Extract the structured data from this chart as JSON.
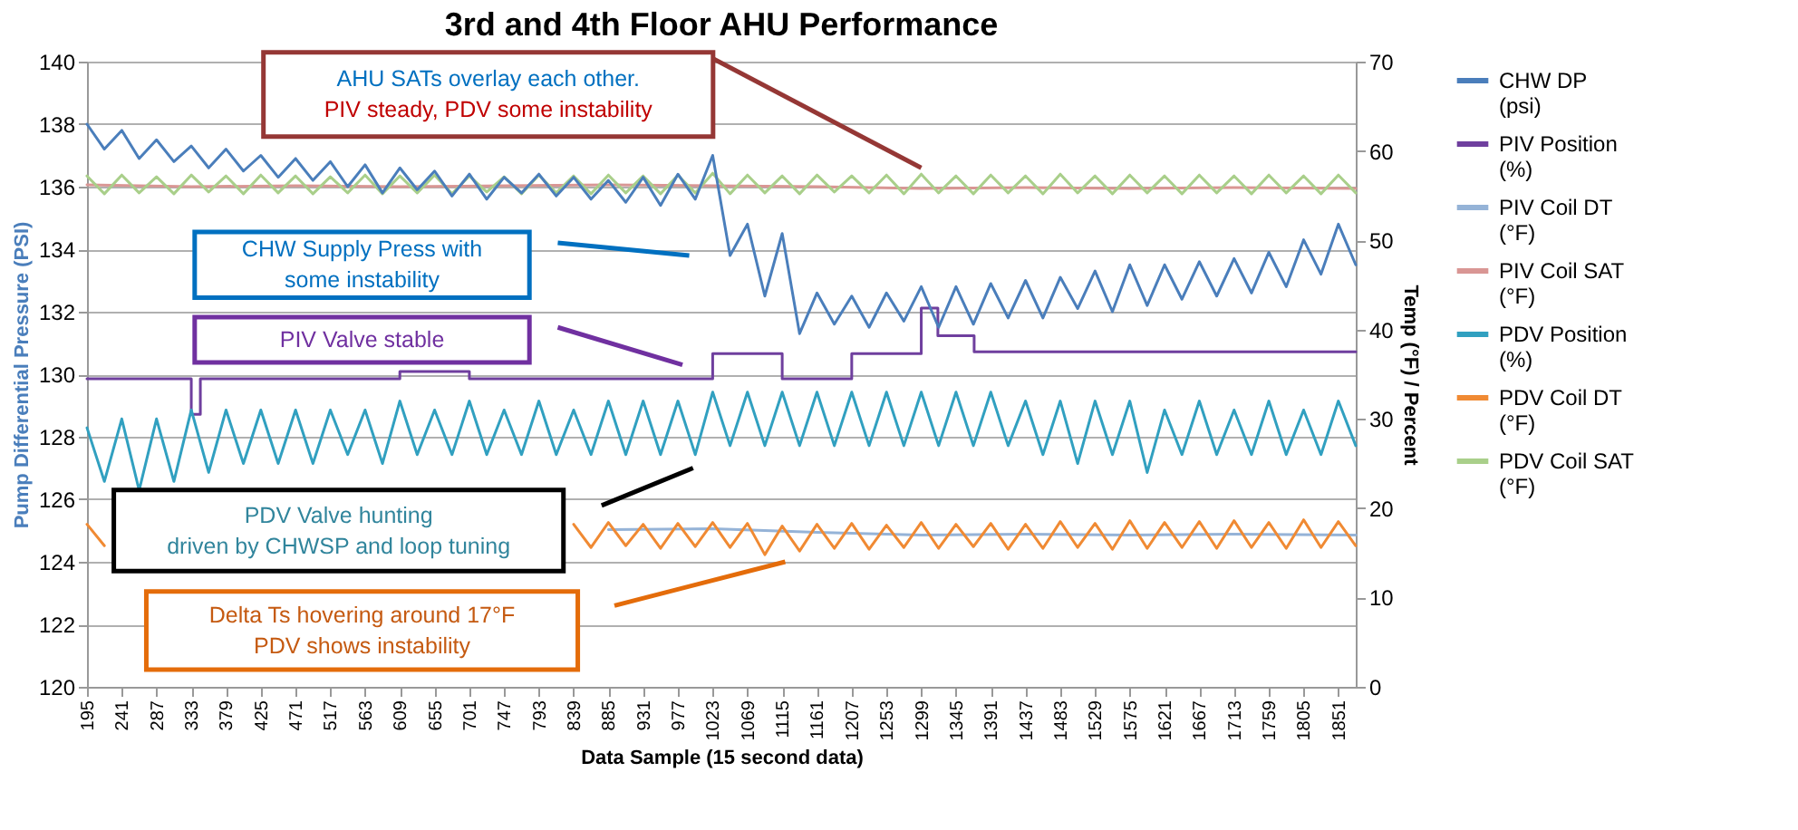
{
  "chart_data": {
    "type": "line",
    "title": "3rd and 4th Floor AHU Performance",
    "xlabel": "Data Sample   (15 second data)",
    "ylabel": "Pump Differential Pressure  (PSI)",
    "y2label": "Temp (°F)  /  Percent",
    "x": [
      195,
      218,
      241,
      264,
      287,
      310,
      333,
      356,
      379,
      402,
      425,
      448,
      471,
      494,
      517,
      540,
      563,
      586,
      609,
      632,
      655,
      678,
      701,
      724,
      747,
      770,
      793,
      816,
      839,
      862,
      885,
      908,
      931,
      954,
      977,
      1000,
      1023,
      1046,
      1069,
      1092,
      1115,
      1138,
      1161,
      1184,
      1207,
      1230,
      1253,
      1276,
      1299,
      1322,
      1345,
      1368,
      1391,
      1414,
      1437,
      1460,
      1483,
      1506,
      1529,
      1552,
      1575,
      1598,
      1621,
      1644,
      1667,
      1690,
      1713,
      1736,
      1759,
      1782,
      1805,
      1828,
      1851,
      1874
    ],
    "xlim": [
      195,
      1874
    ],
    "xticks": [
      195,
      241,
      287,
      333,
      379,
      425,
      471,
      517,
      563,
      609,
      655,
      701,
      747,
      793,
      839,
      885,
      931,
      977,
      1023,
      1069,
      1115,
      1161,
      1207,
      1253,
      1299,
      1345,
      1391,
      1437,
      1483,
      1529,
      1575,
      1621,
      1667,
      1713,
      1759,
      1805,
      1851
    ],
    "ylim": [
      120,
      140
    ],
    "yticks": [
      120,
      122,
      124,
      126,
      128,
      130,
      132,
      134,
      136,
      138,
      140
    ],
    "y2lim": [
      0,
      70
    ],
    "y2ticks": [
      0,
      10,
      20,
      30,
      40,
      50,
      60,
      70
    ],
    "grid": "y",
    "legend": "right",
    "series": [
      {
        "name": "CHW DP (psi)",
        "color": "#4a7ebb",
        "values": [
          138.0,
          137.2,
          137.8,
          136.9,
          137.5,
          136.8,
          137.3,
          136.6,
          137.2,
          136.5,
          137.0,
          136.3,
          136.9,
          136.2,
          136.8,
          136.0,
          136.7,
          135.8,
          136.6,
          135.9,
          136.5,
          135.7,
          136.4,
          135.6,
          136.3,
          135.8,
          136.4,
          135.7,
          136.3,
          135.6,
          136.2,
          135.5,
          136.3,
          135.4,
          136.4,
          135.6,
          137.0,
          133.8,
          134.8,
          132.5,
          134.5,
          131.3,
          132.6,
          131.6,
          132.5,
          131.5,
          132.6,
          131.7,
          132.8,
          131.5,
          132.8,
          131.6,
          132.9,
          131.8,
          133.0,
          131.8,
          133.1,
          132.1,
          133.3,
          132.0,
          133.5,
          132.2,
          133.5,
          132.4,
          133.6,
          132.5,
          133.7,
          132.6,
          133.9,
          132.8,
          134.3,
          133.2,
          134.8,
          133.5
        ]
      },
      {
        "name": "PIV Position (%)",
        "color": "#6f3f9e",
        "type": "step",
        "axis": "y2",
        "x": [
          195,
          320,
          333,
          345,
          609,
          701,
          1023,
          1115,
          1207,
          1299,
          1321,
          1369,
          1874
        ],
        "values": [
          34.5,
          34.5,
          30.5,
          34.5,
          35.3,
          34.5,
          37.3,
          34.5,
          37.3,
          42.4,
          39.3,
          37.5,
          37.5
        ]
      },
      {
        "name": "PIV Coil DT (°F)",
        "color": "#95b3d7",
        "axis": "y2",
        "x": [
          885,
          1023,
          1161,
          1299,
          1437,
          1575,
          1713,
          1874
        ],
        "values": [
          17.6,
          17.7,
          17.3,
          17.0,
          17.1,
          17.0,
          17.1,
          17.0
        ]
      },
      {
        "name": "PIV Coil SAT (°F)",
        "color": "#d99694",
        "axis": "y2",
        "x": [
          195,
          333,
          471,
          609,
          747,
          885,
          1023,
          1161,
          1299,
          1437,
          1575,
          1713,
          1874
        ],
        "values": [
          56.2,
          56.0,
          56.1,
          56.0,
          56.1,
          56.2,
          56.1,
          56.0,
          55.8,
          55.9,
          55.8,
          55.9,
          55.8
        ]
      },
      {
        "name": "PDV Position (%)",
        "color": "#31a0c0",
        "axis": "y2",
        "values": [
          29,
          23,
          30,
          22,
          30,
          23,
          31,
          24,
          31,
          25,
          31,
          25,
          31,
          25,
          31,
          26,
          31,
          25,
          32,
          26,
          31,
          26,
          32,
          26,
          31,
          26,
          32,
          26,
          31,
          26,
          32,
          26,
          32,
          26,
          32,
          26,
          33,
          27,
          33,
          27,
          33,
          27,
          33,
          27,
          33,
          27,
          33,
          27,
          33,
          27,
          33,
          27,
          33,
          27,
          32,
          26,
          32,
          25,
          32,
          26,
          32,
          24,
          31,
          26,
          32,
          26,
          31,
          26,
          32,
          26,
          31,
          26,
          32,
          27
        ]
      },
      {
        "name": "PDV Coil DT (°F)",
        "color": "#f08a33",
        "axis": "y2",
        "values": [
          18.2,
          15.8,
          null,
          null,
          null,
          null,
          null,
          null,
          null,
          null,
          null,
          null,
          null,
          null,
          null,
          null,
          null,
          null,
          null,
          null,
          null,
          null,
          null,
          null,
          null,
          null,
          null,
          null,
          18.2,
          15.6,
          18.4,
          15.8,
          18.2,
          15.5,
          18.3,
          15.7,
          18.4,
          15.6,
          18.3,
          14.8,
          18.0,
          15.2,
          18.2,
          15.5,
          18.3,
          15.4,
          18.1,
          15.6,
          18.4,
          15.5,
          18.2,
          15.7,
          18.3,
          15.4,
          18.2,
          15.5,
          18.5,
          15.6,
          18.3,
          15.4,
          18.6,
          15.5,
          18.4,
          15.6,
          18.5,
          15.5,
          18.6,
          15.6,
          18.4,
          15.5,
          18.7,
          15.6,
          18.5,
          15.8
        ]
      },
      {
        "name": "PDV Coil SAT (°F)",
        "color": "#a9cf8a",
        "axis": "y2",
        "values": [
          57.2,
          55.2,
          57.3,
          55.3,
          57.1,
          55.2,
          57.3,
          55.4,
          57.2,
          55.2,
          57.3,
          55.3,
          57.2,
          55.2,
          57.1,
          55.3,
          57.3,
          55.2,
          57.2,
          55.3,
          57.3,
          55.2,
          57.2,
          55.4,
          57.1,
          55.2,
          57.3,
          55.3,
          57.2,
          55.2,
          57.3,
          55.3,
          57.2,
          55.2,
          57.3,
          55.3,
          57.5,
          55.2,
          57.3,
          55.3,
          57.2,
          55.2,
          57.3,
          55.4,
          57.2,
          55.3,
          57.3,
          55.2,
          57.4,
          55.3,
          57.2,
          55.2,
          57.3,
          55.3,
          57.2,
          55.2,
          57.4,
          55.3,
          57.2,
          55.2,
          57.3,
          55.3,
          57.2,
          55.2,
          57.3,
          55.3,
          57.2,
          55.2,
          57.3,
          55.3,
          57.2,
          55.2,
          57.3,
          55.3
        ]
      }
    ],
    "annotations": [
      "AHU SATs overlay each other.\nPIV steady, PDV some instability",
      "CHW Supply Press with\nsome instability",
      "PIV Valve stable",
      "PDV Valve hunting\ndriven by CHWSP and loop tuning",
      "Delta Ts hovering around 17°F\nPDV shows instability"
    ]
  }
}
